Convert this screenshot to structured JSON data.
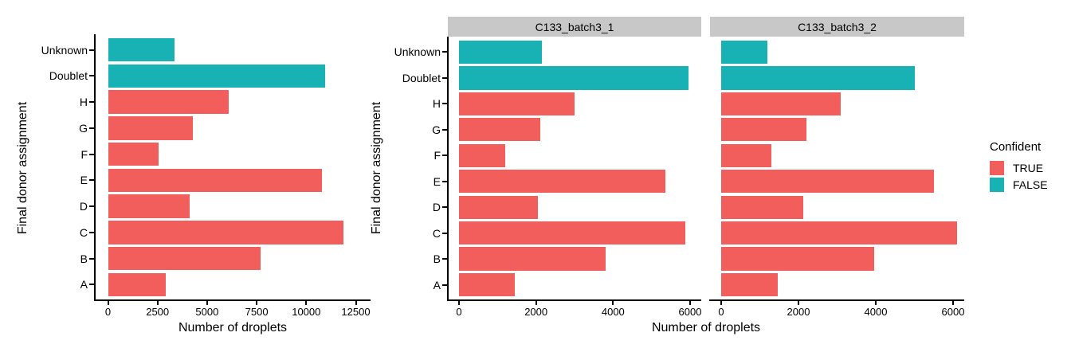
{
  "figure": {
    "x_axis_title": "Number of droplets",
    "y_axis_title": "Final donor assignment",
    "legend": {
      "title": "Confident",
      "entries": [
        {
          "label": "TRUE",
          "color": "#F25E5B"
        },
        {
          "label": "FALSE",
          "color": "#18B2B4"
        }
      ]
    },
    "colors": {
      "true_bar": "#F25E5B",
      "false_bar": "#18B2B4",
      "strip_bg": "#C8C8C8",
      "axis": "#000000",
      "background": "#FFFFFF"
    }
  },
  "chart_data": [
    {
      "type": "bar",
      "orientation": "horizontal",
      "facet": null,
      "xlabel": "Number of droplets",
      "ylabel": "Final donor assignment",
      "categories": [
        "Unknown",
        "Doublet",
        "H",
        "G",
        "F",
        "E",
        "D",
        "C",
        "B",
        "A"
      ],
      "values": [
        3350,
        10950,
        6100,
        4290,
        2550,
        10800,
        4130,
        11870,
        7700,
        2900
      ],
      "confident": [
        false,
        false,
        true,
        true,
        true,
        true,
        true,
        true,
        true,
        true
      ],
      "xlim": [
        0,
        12500
      ],
      "xticks": [
        0,
        2500,
        5000,
        7500,
        10000,
        12500
      ],
      "grid": false,
      "legend_position": "right"
    },
    {
      "type": "bar",
      "orientation": "horizontal",
      "facet": "C133_batch3_1",
      "xlabel": "Number of droplets",
      "ylabel": "Final donor assignment",
      "categories": [
        "Unknown",
        "Doublet",
        "H",
        "G",
        "F",
        "E",
        "D",
        "C",
        "B",
        "A"
      ],
      "values": [
        2150,
        5950,
        3000,
        2100,
        1200,
        5350,
        2050,
        5870,
        3800,
        1450
      ],
      "confident": [
        false,
        false,
        true,
        true,
        true,
        true,
        true,
        true,
        true,
        true
      ],
      "xlim": [
        0,
        6000
      ],
      "xticks": [
        0,
        2000,
        4000,
        6000
      ],
      "grid": false,
      "legend_position": "right"
    },
    {
      "type": "bar",
      "orientation": "horizontal",
      "facet": "C133_batch3_2",
      "xlabel": "Number of droplets",
      "ylabel": "Final donor assignment",
      "categories": [
        "Unknown",
        "Doublet",
        "H",
        "G",
        "F",
        "E",
        "D",
        "C",
        "B",
        "A"
      ],
      "values": [
        1200,
        5000,
        3100,
        2200,
        1300,
        5500,
        2130,
        6100,
        3950,
        1470
      ],
      "confident": [
        false,
        false,
        true,
        true,
        true,
        true,
        true,
        true,
        true,
        true
      ],
      "xlim": [
        0,
        6000
      ],
      "xticks": [
        0,
        2000,
        4000,
        6000
      ],
      "grid": false,
      "legend_position": "right"
    }
  ]
}
